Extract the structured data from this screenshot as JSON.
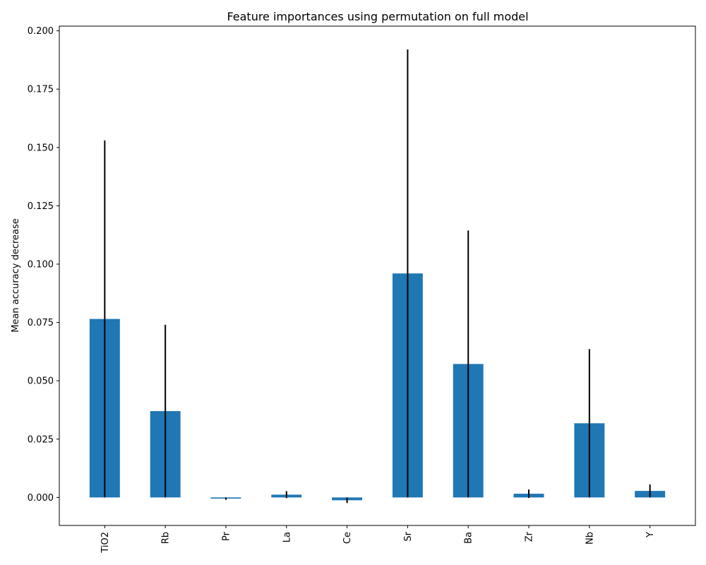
{
  "chart_data": {
    "type": "bar",
    "title": "Feature importances using permutation on full model",
    "xlabel": "",
    "ylabel": "Mean accuracy decrease",
    "ylim": [
      -0.012,
      0.202
    ],
    "yticks": [
      0.0,
      0.025,
      0.05,
      0.075,
      0.1,
      0.125,
      0.15,
      0.175,
      0.2
    ],
    "ytick_labels": [
      "0.000",
      "0.025",
      "0.050",
      "0.075",
      "0.100",
      "0.125",
      "0.150",
      "0.175",
      "0.200"
    ],
    "categories": [
      "TiO2",
      "Rb",
      "Pr",
      "La",
      "Ce",
      "Sr",
      "Ba",
      "Zr",
      "Nb",
      "Y"
    ],
    "values": [
      0.0765,
      0.037,
      -0.0005,
      0.0012,
      -0.0012,
      0.096,
      0.0572,
      0.0016,
      0.0318,
      0.0028
    ],
    "errors": [
      0.0765,
      0.037,
      0.0005,
      0.0015,
      0.0012,
      0.096,
      0.0572,
      0.0018,
      0.0318,
      0.0028
    ],
    "colors": {
      "bar": "#1f77b4",
      "error": "#000000",
      "axis": "#000000"
    },
    "grid": false,
    "legend": "none"
  }
}
